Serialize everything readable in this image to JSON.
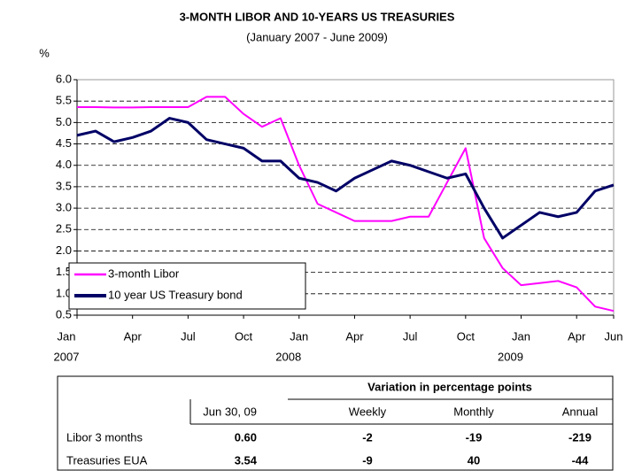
{
  "chart_data": {
    "type": "line",
    "title": "3-MONTH LIBOR AND 10-YEARS  US TREASURIES",
    "subtitle": "(January 2007 - June 2009)",
    "y_label": "%",
    "x": [
      "2007-01",
      "2007-02",
      "2007-03",
      "2007-04",
      "2007-05",
      "2007-06",
      "2007-07",
      "2007-08",
      "2007-09",
      "2007-10",
      "2007-11",
      "2007-12",
      "2008-01",
      "2008-02",
      "2008-03",
      "2008-04",
      "2008-05",
      "2008-06",
      "2008-07",
      "2008-08",
      "2008-09",
      "2008-10",
      "2008-11",
      "2008-12",
      "2009-01",
      "2009-02",
      "2009-03",
      "2009-04",
      "2009-05",
      "2009-06"
    ],
    "series": [
      {
        "name": "3-month Libor",
        "color": "#ff00ff",
        "values": [
          5.36,
          5.36,
          5.35,
          5.35,
          5.36,
          5.36,
          5.36,
          5.6,
          5.6,
          5.2,
          4.9,
          5.1,
          4.0,
          3.1,
          2.9,
          2.7,
          2.7,
          2.7,
          2.8,
          2.8,
          3.6,
          4.4,
          2.3,
          1.6,
          1.2,
          1.25,
          1.3,
          1.15,
          0.7,
          0.6
        ]
      },
      {
        "name": "10 year US Treasury bond",
        "color": "#000066",
        "values": [
          4.7,
          4.8,
          4.55,
          4.65,
          4.8,
          5.1,
          5.0,
          4.6,
          4.5,
          4.4,
          4.1,
          4.1,
          3.7,
          3.6,
          3.4,
          3.7,
          3.9,
          4.1,
          4.0,
          3.85,
          3.7,
          3.8,
          3.0,
          2.3,
          2.6,
          2.9,
          2.8,
          2.9,
          3.4,
          3.54
        ]
      }
    ],
    "xlim": [
      "2007-01",
      "2009-06"
    ],
    "xticks": [
      {
        "value": "2007-01",
        "label": "Jan"
      },
      {
        "value": "2007-04",
        "label": "Apr"
      },
      {
        "value": "2007-07",
        "label": "Jul"
      },
      {
        "value": "2007-10",
        "label": "Oct"
      },
      {
        "value": "2008-01",
        "label": "Jan"
      },
      {
        "value": "2008-04",
        "label": "Apr"
      },
      {
        "value": "2008-07",
        "label": "Jul"
      },
      {
        "value": "2008-10",
        "label": "Oct"
      },
      {
        "value": "2009-01",
        "label": "Jan"
      },
      {
        "value": "2009-04",
        "label": "Apr"
      },
      {
        "value": "2009-06",
        "label": "Jun"
      }
    ],
    "xtick_years": [
      {
        "value": "2007-01",
        "label": "2007"
      },
      {
        "value": "2008-01",
        "label": "2008"
      },
      {
        "value": "2009-01",
        "label": "2009"
      }
    ],
    "ylim": [
      0.5,
      6
    ],
    "yticks": [
      0.5,
      {
        "value": 1,
        "label": "1.0"
      },
      1.5,
      {
        "value": 2,
        "label": "2.0"
      },
      2.5,
      {
        "value": 3,
        "label": "3.0"
      },
      3.5,
      {
        "value": 4,
        "label": "4.0"
      },
      4.5,
      {
        "value": 5,
        "label": "5.0"
      },
      5.5,
      {
        "value": 6,
        "label": "6.0"
      }
    ],
    "grid": true,
    "legend": "lower left"
  },
  "table": {
    "group_header": "Variation in percentage points",
    "columns": [
      "",
      "Jun 30, 09",
      "Weekly",
      "Monthly",
      "Annual"
    ],
    "rows": [
      [
        "Libor 3 months",
        "0.60",
        "-2",
        "-19",
        "-219"
      ],
      [
        "Treasuries EUA",
        "3.54",
        "-9",
        "40",
        "-44"
      ]
    ]
  }
}
